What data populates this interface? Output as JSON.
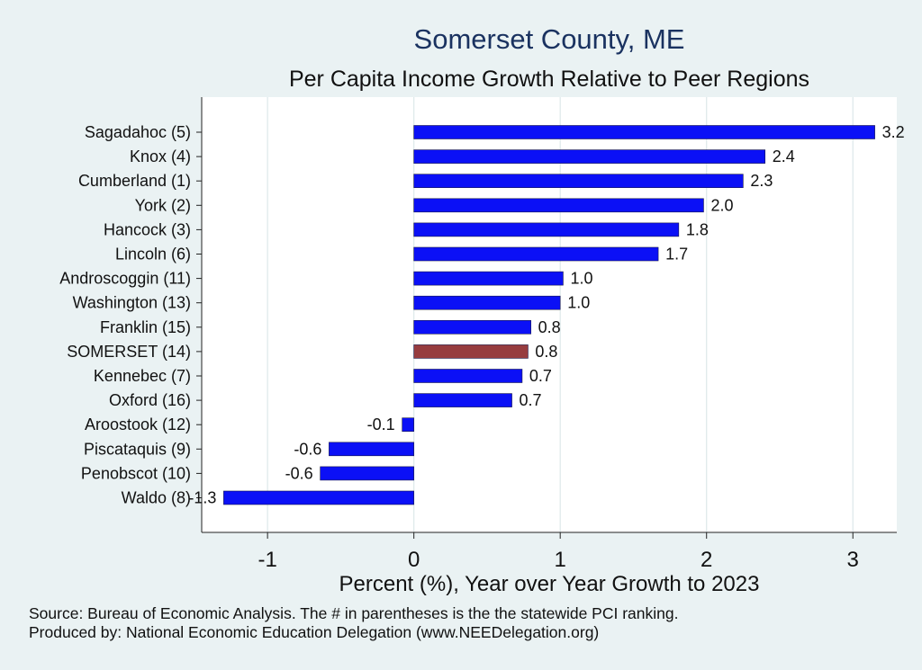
{
  "chart_data": {
    "type": "bar",
    "orientation": "horizontal",
    "title": "Somerset County, ME",
    "subtitle": "Per Capita Income Growth Relative to Peer Regions",
    "xlabel": "Percent (%), Year over Year Growth to 2023",
    "ylabel": "",
    "xlim": [
      -1.45,
      3.3
    ],
    "xticks": [
      -1,
      0,
      1,
      2,
      3
    ],
    "grid": true,
    "categories": [
      "Sagadahoc  (5)",
      "Knox  (4)",
      "Cumberland  (1)",
      "York  (2)",
      "Hancock  (3)",
      "Lincoln  (6)",
      "Androscoggin (11)",
      "Washington (13)",
      "Franklin (15)",
      "SOMERSET (14)",
      "Kennebec  (7)",
      "Oxford (16)",
      "Aroostook (12)",
      "Piscataquis  (9)",
      "Penobscot (10)",
      "Waldo  (8)"
    ],
    "values": [
      3.15,
      2.4,
      2.25,
      1.98,
      1.81,
      1.67,
      1.02,
      1.0,
      0.8,
      0.78,
      0.74,
      0.67,
      -0.08,
      -0.58,
      -0.64,
      -1.3
    ],
    "data_labels": [
      "3.2",
      "2.4",
      "2.3",
      "2.0",
      "1.8",
      "1.7",
      "1.0",
      "1.0",
      "0.8",
      "0.8",
      "0.7",
      "0.7",
      "-0.1",
      "-0.6",
      "-0.6",
      "-1.3"
    ],
    "highlight_index": 9,
    "colors": {
      "bar": "#0b10f6",
      "highlight": "#973c3f",
      "plot_bg": "#ffffff",
      "grid": "#dde8ea"
    }
  },
  "footer": {
    "source": "Source: Bureau of Economic Analysis. The # in parentheses is the the statewide PCI ranking.",
    "produced": "Produced by: National Economic Education Delegation (www.NEEDelegation.org)"
  }
}
